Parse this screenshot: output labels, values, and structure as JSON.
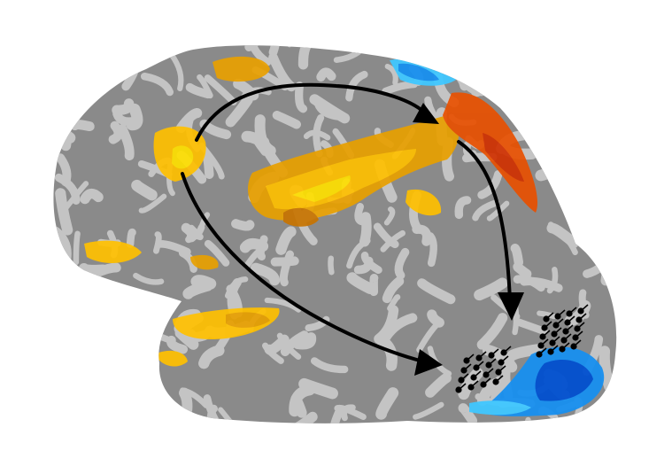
{
  "figure": {
    "background": "#ffffff",
    "cortex_dark": "#6b6b6b",
    "cortex_light": "#c4c4c4",
    "activation_colors": [
      "#ffe000",
      "#ffc000",
      "#e8a000",
      "#c87400",
      "#e85000",
      "#d03000"
    ],
    "deactivation_colors": [
      "#40c8ff",
      "#1890f0",
      "#0050d0"
    ],
    "arrow_color": "#000000",
    "electrode_color": "#000000"
  }
}
